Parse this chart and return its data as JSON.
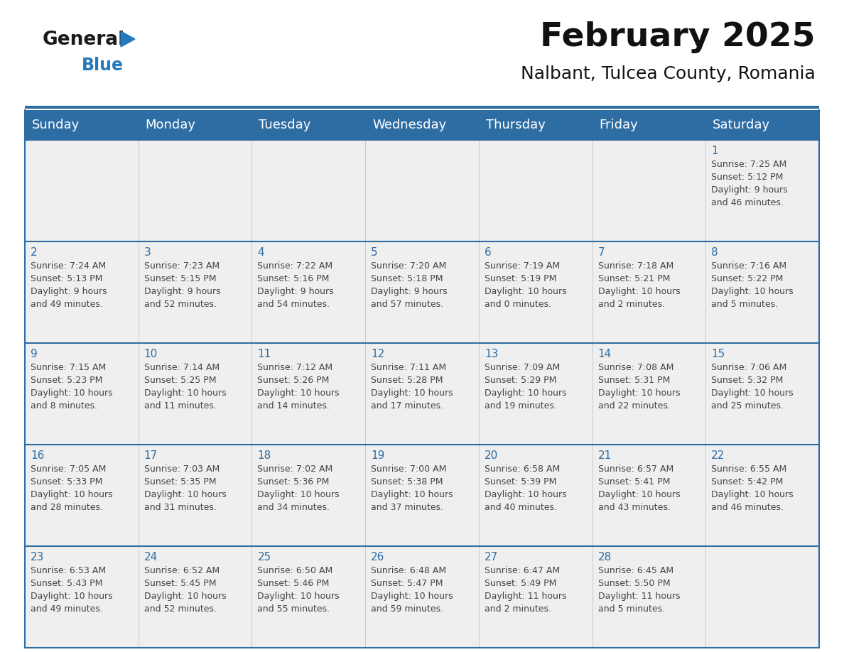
{
  "title": "February 2025",
  "subtitle": "Nalbant, Tulcea County, Romania",
  "header_bg": "#2E6DA4",
  "header_text_color": "#FFFFFF",
  "cell_bg": "#EFEFEF",
  "grid_line_color": "#2E6DA4",
  "day_number_color": "#2E6DA4",
  "cell_text_color": "#444444",
  "days_of_week": [
    "Sunday",
    "Monday",
    "Tuesday",
    "Wednesday",
    "Thursday",
    "Friday",
    "Saturday"
  ],
  "weeks": [
    [
      {
        "day": null,
        "info": ""
      },
      {
        "day": null,
        "info": ""
      },
      {
        "day": null,
        "info": ""
      },
      {
        "day": null,
        "info": ""
      },
      {
        "day": null,
        "info": ""
      },
      {
        "day": null,
        "info": ""
      },
      {
        "day": 1,
        "info": "Sunrise: 7:25 AM\nSunset: 5:12 PM\nDaylight: 9 hours\nand 46 minutes."
      }
    ],
    [
      {
        "day": 2,
        "info": "Sunrise: 7:24 AM\nSunset: 5:13 PM\nDaylight: 9 hours\nand 49 minutes."
      },
      {
        "day": 3,
        "info": "Sunrise: 7:23 AM\nSunset: 5:15 PM\nDaylight: 9 hours\nand 52 minutes."
      },
      {
        "day": 4,
        "info": "Sunrise: 7:22 AM\nSunset: 5:16 PM\nDaylight: 9 hours\nand 54 minutes."
      },
      {
        "day": 5,
        "info": "Sunrise: 7:20 AM\nSunset: 5:18 PM\nDaylight: 9 hours\nand 57 minutes."
      },
      {
        "day": 6,
        "info": "Sunrise: 7:19 AM\nSunset: 5:19 PM\nDaylight: 10 hours\nand 0 minutes."
      },
      {
        "day": 7,
        "info": "Sunrise: 7:18 AM\nSunset: 5:21 PM\nDaylight: 10 hours\nand 2 minutes."
      },
      {
        "day": 8,
        "info": "Sunrise: 7:16 AM\nSunset: 5:22 PM\nDaylight: 10 hours\nand 5 minutes."
      }
    ],
    [
      {
        "day": 9,
        "info": "Sunrise: 7:15 AM\nSunset: 5:23 PM\nDaylight: 10 hours\nand 8 minutes."
      },
      {
        "day": 10,
        "info": "Sunrise: 7:14 AM\nSunset: 5:25 PM\nDaylight: 10 hours\nand 11 minutes."
      },
      {
        "day": 11,
        "info": "Sunrise: 7:12 AM\nSunset: 5:26 PM\nDaylight: 10 hours\nand 14 minutes."
      },
      {
        "day": 12,
        "info": "Sunrise: 7:11 AM\nSunset: 5:28 PM\nDaylight: 10 hours\nand 17 minutes."
      },
      {
        "day": 13,
        "info": "Sunrise: 7:09 AM\nSunset: 5:29 PM\nDaylight: 10 hours\nand 19 minutes."
      },
      {
        "day": 14,
        "info": "Sunrise: 7:08 AM\nSunset: 5:31 PM\nDaylight: 10 hours\nand 22 minutes."
      },
      {
        "day": 15,
        "info": "Sunrise: 7:06 AM\nSunset: 5:32 PM\nDaylight: 10 hours\nand 25 minutes."
      }
    ],
    [
      {
        "day": 16,
        "info": "Sunrise: 7:05 AM\nSunset: 5:33 PM\nDaylight: 10 hours\nand 28 minutes."
      },
      {
        "day": 17,
        "info": "Sunrise: 7:03 AM\nSunset: 5:35 PM\nDaylight: 10 hours\nand 31 minutes."
      },
      {
        "day": 18,
        "info": "Sunrise: 7:02 AM\nSunset: 5:36 PM\nDaylight: 10 hours\nand 34 minutes."
      },
      {
        "day": 19,
        "info": "Sunrise: 7:00 AM\nSunset: 5:38 PM\nDaylight: 10 hours\nand 37 minutes."
      },
      {
        "day": 20,
        "info": "Sunrise: 6:58 AM\nSunset: 5:39 PM\nDaylight: 10 hours\nand 40 minutes."
      },
      {
        "day": 21,
        "info": "Sunrise: 6:57 AM\nSunset: 5:41 PM\nDaylight: 10 hours\nand 43 minutes."
      },
      {
        "day": 22,
        "info": "Sunrise: 6:55 AM\nSunset: 5:42 PM\nDaylight: 10 hours\nand 46 minutes."
      }
    ],
    [
      {
        "day": 23,
        "info": "Sunrise: 6:53 AM\nSunset: 5:43 PM\nDaylight: 10 hours\nand 49 minutes."
      },
      {
        "day": 24,
        "info": "Sunrise: 6:52 AM\nSunset: 5:45 PM\nDaylight: 10 hours\nand 52 minutes."
      },
      {
        "day": 25,
        "info": "Sunrise: 6:50 AM\nSunset: 5:46 PM\nDaylight: 10 hours\nand 55 minutes."
      },
      {
        "day": 26,
        "info": "Sunrise: 6:48 AM\nSunset: 5:47 PM\nDaylight: 10 hours\nand 59 minutes."
      },
      {
        "day": 27,
        "info": "Sunrise: 6:47 AM\nSunset: 5:49 PM\nDaylight: 11 hours\nand 2 minutes."
      },
      {
        "day": 28,
        "info": "Sunrise: 6:45 AM\nSunset: 5:50 PM\nDaylight: 11 hours\nand 5 minutes."
      },
      {
        "day": null,
        "info": ""
      }
    ]
  ],
  "logo_general_color": "#1a1a1a",
  "logo_blue_color": "#2479BD",
  "title_fontsize": 34,
  "subtitle_fontsize": 18,
  "header_fontsize": 13,
  "day_num_fontsize": 11,
  "cell_info_fontsize": 9
}
